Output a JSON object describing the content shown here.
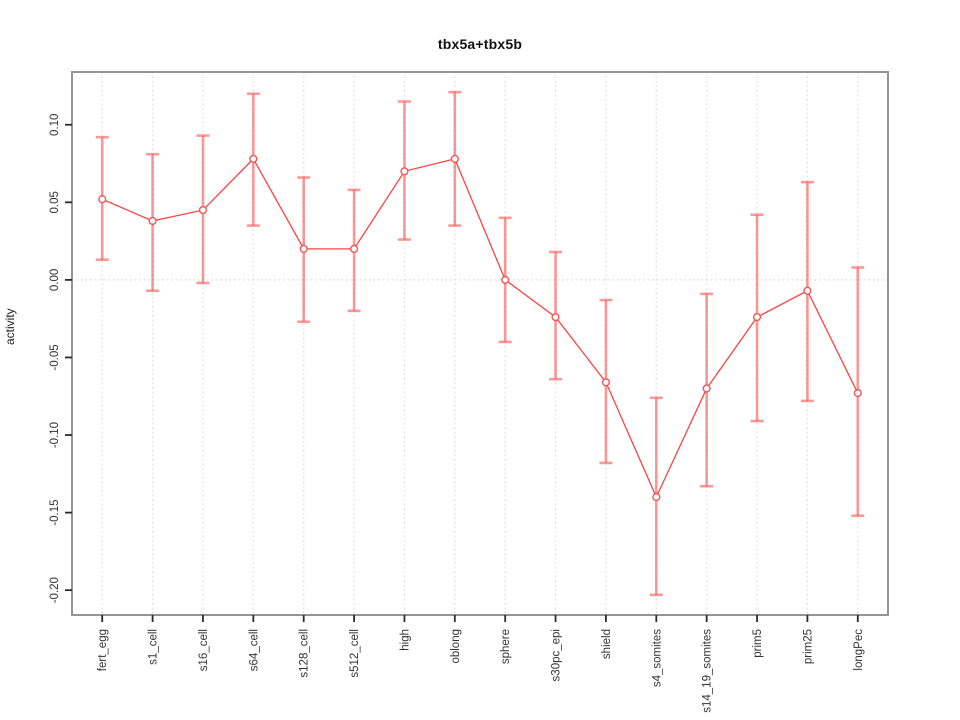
{
  "figure": {
    "title": "tbx5a+tbx5b",
    "y_axis_label": "activity"
  },
  "chart_data": {
    "type": "line",
    "title": "tbx5a+tbx5b",
    "xlabel": "",
    "ylabel": "activity",
    "categories": [
      "fert_egg",
      "s1_cell",
      "s16_cell",
      "s64_cell",
      "s128_cell",
      "s512_cell",
      "high",
      "oblong",
      "sphere",
      "s30pc_epi",
      "shield",
      "s4_somites",
      "s14_19_somites",
      "prim5",
      "prim25",
      "longPec"
    ],
    "series": [
      {
        "name": "activity",
        "values": [
          0.052,
          0.038,
          0.045,
          0.078,
          0.02,
          0.02,
          0.07,
          0.078,
          0.0,
          -0.024,
          -0.066,
          -0.14,
          -0.07,
          -0.024,
          -0.007,
          -0.073
        ],
        "error_low": [
          0.013,
          -0.007,
          -0.002,
          0.035,
          -0.027,
          -0.02,
          0.026,
          0.035,
          -0.04,
          -0.064,
          -0.118,
          -0.203,
          -0.133,
          -0.091,
          -0.078,
          -0.152
        ],
        "error_high": [
          0.092,
          0.081,
          0.093,
          0.12,
          0.066,
          0.058,
          0.115,
          0.121,
          0.04,
          0.018,
          -0.013,
          -0.076,
          -0.009,
          0.042,
          0.063,
          0.008
        ]
      }
    ],
    "ylim": [
      -0.216,
      0.134
    ],
    "yticks": [
      0.1,
      0.05,
      0.0,
      -0.05,
      -0.1,
      -0.15,
      -0.2
    ],
    "ytick_labels": [
      "0.10",
      "0.05",
      "0.00",
      "-0.05",
      "-0.10",
      "-0.15",
      "-0.20"
    ],
    "grid": "vertical dotted gridline at each category; dotted horizontal line at y=0 only",
    "legend": "none",
    "marker": "open-circle",
    "colors": {
      "series_line": "#ff4242",
      "marker_stroke": "#f25555",
      "marker_fill": "#ffffff",
      "error_bar": "rgba(248,90,90,0.62)",
      "grid_line": "#dedede",
      "zero_line": "#d6d6d6",
      "box_border": "#949494",
      "tick_mark": "#2a2a2a",
      "tick_text": "#333333"
    }
  }
}
